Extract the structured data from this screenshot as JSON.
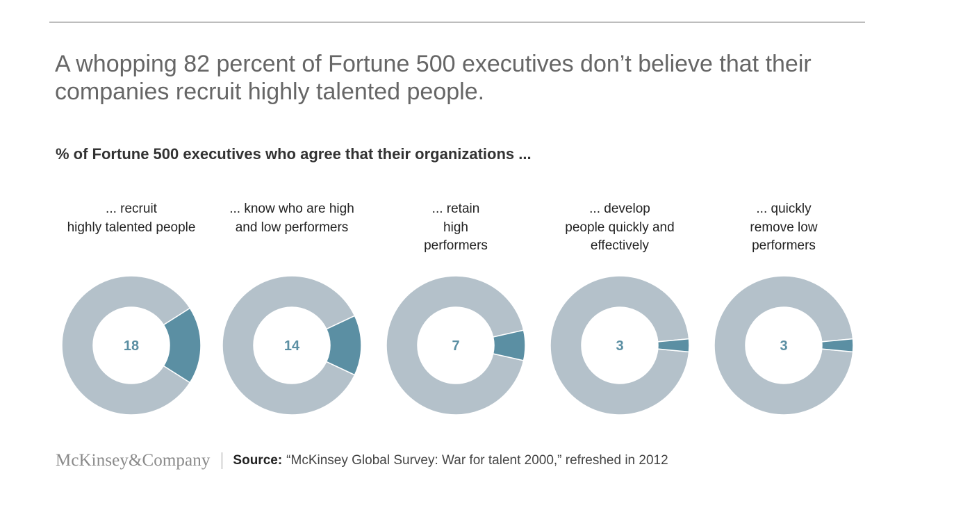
{
  "headline": "A whopping 82 percent of Fortune 500 executives don’t believe that their companies recruit highly talented people.",
  "footer": {
    "logo": "McKinsey&Company",
    "source_label": "Source:",
    "source_text": "“McKinsey Global Survey: War for talent 2000,” refreshed in 2012"
  },
  "colors": {
    "highlight": "#5b8fa3",
    "remainder": "#b4c1ca",
    "value_text": "#5b8fa3"
  },
  "chart_data": {
    "type": "pie",
    "style": "donut",
    "title": "% of Fortune 500 executives who agree that their organizations ...",
    "unit": "%",
    "charts": [
      {
        "label": "... recruit\nhighly talented people",
        "value": 18,
        "value_label": "18"
      },
      {
        "label": "... know who are high\nand low performers",
        "value": 14,
        "value_label": "14"
      },
      {
        "label": "... retain\nhigh\nperformers",
        "value": 7,
        "value_label": "7"
      },
      {
        "label": "... develop\npeople quickly and\neffectively",
        "value": 3,
        "value_label": "3"
      },
      {
        "label": "... quickly\nremove low\nperformers",
        "value": 3,
        "value_label": "3"
      }
    ]
  }
}
